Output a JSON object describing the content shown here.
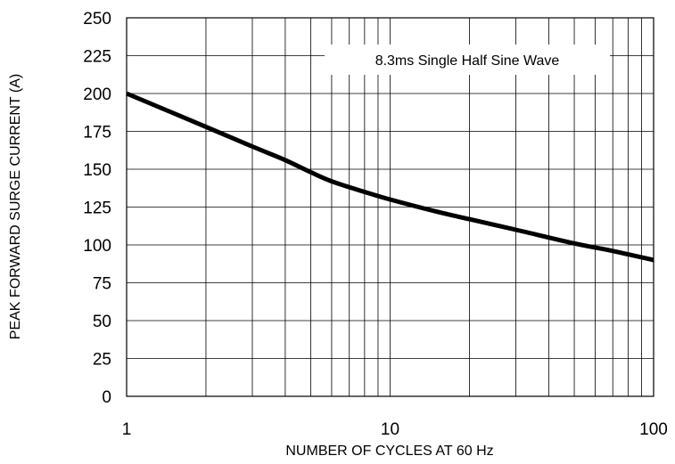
{
  "chart_data": {
    "type": "line",
    "x_scale": "log",
    "xlim": [
      1,
      100
    ],
    "ylim": [
      0,
      250
    ],
    "grid": true,
    "xlabel": "NUMBER OF CYCLES AT 60 Hz",
    "ylabel": "PEAK FORWARD SURGE CURRENT (A)",
    "x_ticks": [
      "1",
      "10",
      "100"
    ],
    "y_ticks": [
      "0",
      "25",
      "50",
      "75",
      "100",
      "125",
      "150",
      "175",
      "200",
      "225",
      "250"
    ],
    "annotation": "8.3ms Single Half Sine Wave",
    "series": [
      {
        "x": [
          1,
          2,
          3,
          4,
          5,
          6,
          8,
          10,
          15,
          20,
          30,
          50,
          70,
          100
        ],
        "y": [
          200,
          178,
          165,
          156,
          148,
          142,
          135,
          130,
          122,
          117,
          110,
          101,
          96,
          90
        ]
      }
    ]
  }
}
